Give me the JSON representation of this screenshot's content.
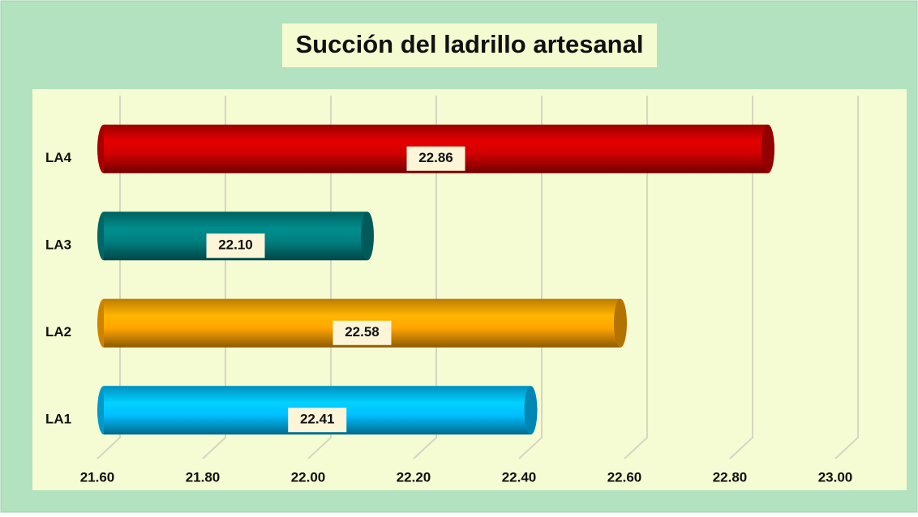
{
  "chart_data": {
    "type": "bar",
    "orientation": "horizontal",
    "title": "Succión del ladrillo artesanal",
    "categories": [
      "LA1",
      "LA2",
      "LA3",
      "LA4"
    ],
    "values": [
      22.41,
      22.58,
      22.1,
      22.86
    ],
    "value_labels": [
      "22.41",
      "22.58",
      "22.10",
      "22.86"
    ],
    "colors": [
      "#00bfff",
      "#ffa500",
      "#008080",
      "#d00000"
    ],
    "xlim": [
      21.6,
      23.0
    ],
    "xticks": [
      {
        "value": 21.6,
        "label": "21.60"
      },
      {
        "value": 21.8,
        "label": "21.80"
      },
      {
        "value": 22.0,
        "label": "22.00"
      },
      {
        "value": 22.2,
        "label": "22.20"
      },
      {
        "value": 22.4,
        "label": "22.40"
      },
      {
        "value": 22.6,
        "label": "22.60"
      },
      {
        "value": 22.8,
        "label": "22.80"
      },
      {
        "value": 23.0,
        "label": "23.00"
      }
    ],
    "grid": true
  }
}
